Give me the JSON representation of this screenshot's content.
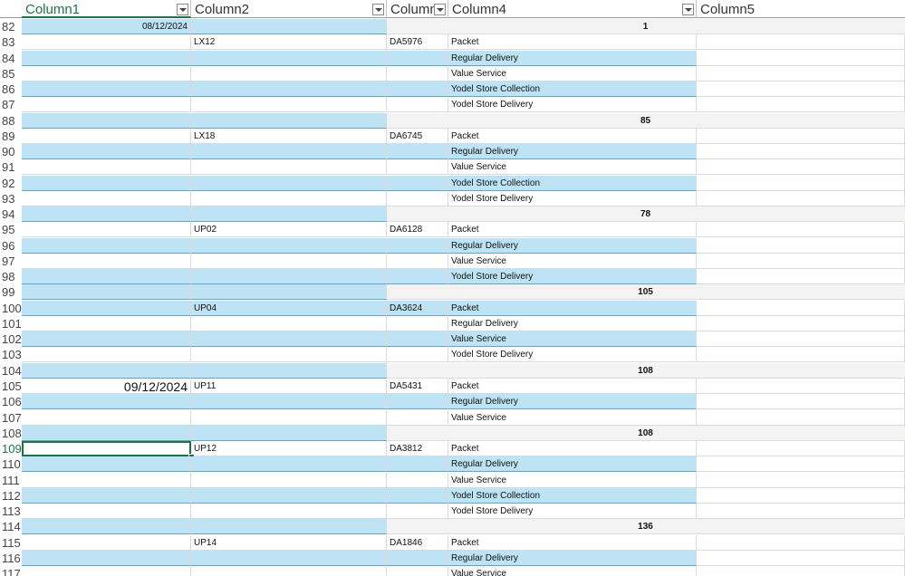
{
  "headers": [
    "Column1",
    "Column2",
    "Column",
    "Column4",
    "Column5"
  ],
  "rows": [
    {
      "n": "82",
      "type": "total",
      "c1": "08/12/2024",
      "c5": "1"
    },
    {
      "n": "83",
      "type": "item",
      "c2": "LX12",
      "c3": "DA5976",
      "c4": "Packet"
    },
    {
      "n": "84",
      "type": "item",
      "c4": "Regular Delivery"
    },
    {
      "n": "85",
      "type": "item",
      "c4": "Value Service"
    },
    {
      "n": "86",
      "type": "item",
      "c4": "Yodel Store Collection"
    },
    {
      "n": "87",
      "type": "item",
      "c4": "Yodel Store Delivery"
    },
    {
      "n": "88",
      "type": "total",
      "c5": "85"
    },
    {
      "n": "89",
      "type": "item",
      "c2": "LX18",
      "c3": "DA6745",
      "c4": "Packet"
    },
    {
      "n": "90",
      "type": "item",
      "c4": "Regular Delivery"
    },
    {
      "n": "91",
      "type": "item",
      "c4": "Value Service"
    },
    {
      "n": "92",
      "type": "item",
      "c4": "Yodel Store Collection"
    },
    {
      "n": "93",
      "type": "item",
      "c4": "Yodel Store Delivery"
    },
    {
      "n": "94",
      "type": "total",
      "c5": "78"
    },
    {
      "n": "95",
      "type": "item",
      "c2": "UP02",
      "c3": "DA6128",
      "c4": "Packet"
    },
    {
      "n": "96",
      "type": "item",
      "c4": "Regular Delivery"
    },
    {
      "n": "97",
      "type": "item",
      "c4": "Value Service"
    },
    {
      "n": "98",
      "type": "item",
      "c4": "Yodel Store Delivery"
    },
    {
      "n": "99",
      "type": "total",
      "c5": "105"
    },
    {
      "n": "100",
      "type": "item",
      "c2": "UP04",
      "c3": "DA3624",
      "c4": "Packet"
    },
    {
      "n": "101",
      "type": "item",
      "c4": "Regular Delivery"
    },
    {
      "n": "102",
      "type": "item",
      "c4": "Value Service"
    },
    {
      "n": "103",
      "type": "item",
      "c4": "Yodel Store Delivery"
    },
    {
      "n": "104",
      "type": "total",
      "c5": "108"
    },
    {
      "n": "105",
      "type": "item",
      "c1": "09/12/2024",
      "c2": "UP11",
      "c3": "DA5431",
      "c4": "Packet"
    },
    {
      "n": "106",
      "type": "item",
      "c4": "Regular Delivery"
    },
    {
      "n": "107",
      "type": "item",
      "c4": "Value Service"
    },
    {
      "n": "108",
      "type": "total",
      "c5": "108"
    },
    {
      "n": "109",
      "type": "item",
      "active": true,
      "c2": "UP12",
      "c3": "DA3812",
      "c4": "Packet"
    },
    {
      "n": "110",
      "type": "item",
      "c4": "Regular Delivery"
    },
    {
      "n": "111",
      "type": "item",
      "c4": "Value Service"
    },
    {
      "n": "112",
      "type": "item",
      "c4": "Yodel Store Collection"
    },
    {
      "n": "113",
      "type": "item",
      "c4": "Yodel Store Delivery"
    },
    {
      "n": "114",
      "type": "total",
      "c5": "136"
    },
    {
      "n": "115",
      "type": "item",
      "c2": "UP14",
      "c3": "DA1846",
      "c4": "Packet"
    },
    {
      "n": "116",
      "type": "item",
      "c4": "Regular Delivery"
    },
    {
      "n": "117",
      "type": "item",
      "c4": "Value Service"
    }
  ]
}
